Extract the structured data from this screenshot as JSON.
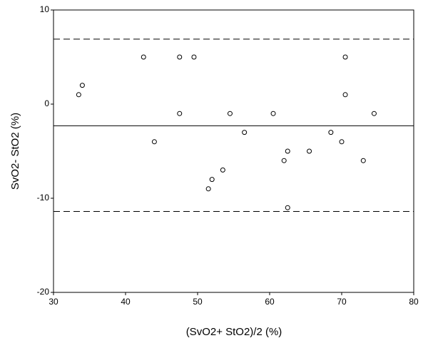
{
  "chart_data": {
    "type": "scatter",
    "x_label": "(SvO2+ StO2)/2 (%)",
    "y_label": "SvO2- StO2 (%)",
    "x": [
      33.5,
      34,
      42.5,
      44,
      47.5,
      47.5,
      49.5,
      51.5,
      52,
      53.5,
      54.5,
      56.5,
      60.5,
      62,
      62.5,
      62.5,
      65.5,
      68.5,
      70,
      70.5,
      70.5,
      73,
      74.5
    ],
    "values": [
      1,
      2,
      5,
      -4,
      5,
      -1,
      5,
      -9,
      -8,
      -7,
      -1,
      -3,
      -1,
      -6,
      -5,
      -11,
      -5,
      -3,
      -4,
      5,
      1,
      -6,
      -1
    ],
    "color": "#000000",
    "xlim": [
      30,
      80
    ],
    "xticks": [
      30,
      40,
      50,
      60,
      70,
      80
    ],
    "ylim": [
      -20,
      10
    ],
    "yticks": [
      -20,
      -10,
      0,
      10
    ],
    "reference_lines": [
      {
        "value": 6.9,
        "style": "dashed"
      },
      {
        "value": -2.3,
        "style": "solid"
      },
      {
        "value": -11.4,
        "style": "dashed"
      }
    ]
  }
}
